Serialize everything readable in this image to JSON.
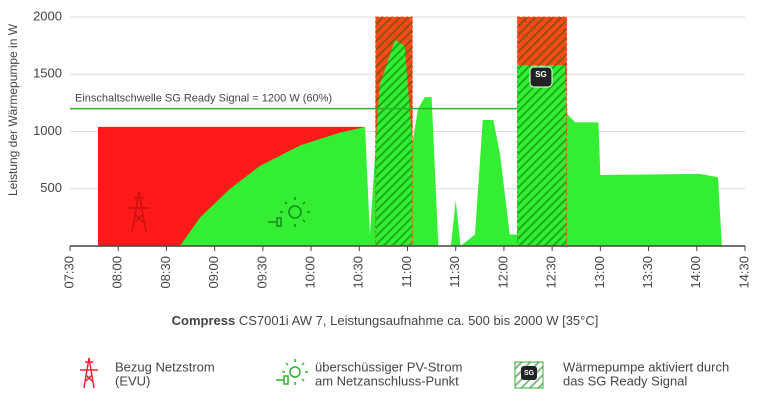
{
  "chart_data": {
    "type": "area",
    "ylabel": "Leistung der Wärmepumpe in W",
    "xlabel_bold": "Compress",
    "xlabel": "CS7001i AW 7, Leistungsaufnahme ca. 500 bis 2000 W [35°C]",
    "xlim": [
      7.5,
      14.5
    ],
    "ylim": [
      0,
      2000
    ],
    "yticks": [
      500,
      1000,
      1500,
      2000
    ],
    "xticks": [
      {
        "value": 7.5,
        "label": "07:30"
      },
      {
        "value": 8,
        "label": "08:00"
      },
      {
        "value": 8.5,
        "label": "08:30"
      },
      {
        "value": 9,
        "label": "09:00"
      },
      {
        "value": 9.5,
        "label": "09:30"
      },
      {
        "value": 10,
        "label": "10:00"
      },
      {
        "value": 10.5,
        "label": "10:30"
      },
      {
        "value": 11,
        "label": "11:00"
      },
      {
        "value": 11.5,
        "label": "11:30"
      },
      {
        "value": 12,
        "label": "12:00"
      },
      {
        "value": 12.5,
        "label": "12:30"
      },
      {
        "value": 13,
        "label": "13:00"
      },
      {
        "value": 13.5,
        "label": "13:30"
      },
      {
        "value": 14,
        "label": "14:00"
      },
      {
        "value": 14.5,
        "label": "14:30"
      }
    ],
    "grid": true,
    "threshold": {
      "value": 1200,
      "label": "Einschaltschwelle SG Ready Signal = 1200 W (60%)",
      "color": "#2bb52b"
    },
    "series": [
      {
        "name": [
          "Bezug Netzstrom",
          "(EVU)"
        ],
        "color": "#ff1a1a",
        "x": [
          7.79,
          7.79,
          10.55,
          10.55
        ],
        "values": [
          0,
          1040,
          1040,
          0
        ]
      },
      {
        "name": [
          "überschüssiger PV-Strom",
          "am Netzanschluss-Punkt"
        ],
        "color": "#33ee33",
        "x": [
          8.64,
          8.85,
          9.16,
          9.47,
          9.89,
          10.3,
          10.56,
          10.61,
          10.71,
          10.87,
          10.97,
          11.05,
          11.11,
          11.18,
          11.25,
          11.32,
          11.45,
          11.5,
          11.55,
          11.7,
          11.78,
          11.89,
          11.96,
          12.06,
          12.14,
          12.14,
          12.63,
          12.66,
          12.74,
          12.98,
          13.0,
          14.03,
          14.22,
          14.26
        ],
        "values": [
          0,
          250,
          500,
          700,
          880,
          990,
          1040,
          100,
          1400,
          1800,
          1750,
          900,
          1200,
          1300,
          1300,
          0,
          0,
          400,
          0,
          100,
          1100,
          1100,
          800,
          100,
          100,
          1580,
          1580,
          1150,
          1080,
          1080,
          620,
          630,
          600,
          0
        ]
      }
    ],
    "sg_ready": {
      "name": [
        "Wärmepumpe aktiviert durch",
        "das SG Ready Signal"
      ],
      "color": "#ff4a1a",
      "bands": [
        {
          "x": [
            10.67,
            11.05
          ],
          "value": 2000
        },
        {
          "x": [
            12.14,
            12.65
          ],
          "value": 2000
        }
      ]
    }
  }
}
